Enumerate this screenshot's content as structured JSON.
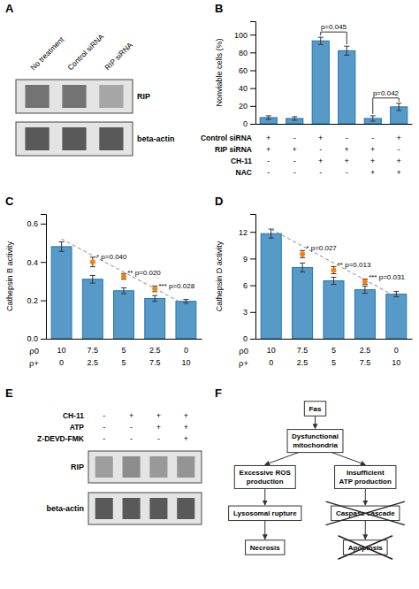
{
  "chart_data": [
    {
      "type": "gel",
      "title": "A",
      "categories": [
        "No treatment",
        "Control siRNA",
        "RIP siRNA"
      ],
      "series": [
        {
          "name": "RIP",
          "values": [
            0.45,
            0.45,
            0.65
          ]
        },
        {
          "name": "beta-actin",
          "values": [
            0.35,
            0.35,
            0.35
          ]
        }
      ]
    },
    {
      "type": "bar",
      "title": "B",
      "ylabel": "Nonviable cells (%)",
      "values": [
        7,
        6,
        93,
        82,
        6,
        19
      ],
      "errors": [
        2,
        2,
        4,
        5,
        3,
        4
      ],
      "ylim": [
        0,
        115
      ],
      "yticks": [
        0,
        20,
        40,
        60,
        80,
        100
      ],
      "tick_labels": "y",
      "annotations": [
        {
          "text": "p=0.045",
          "x": [
            2,
            3
          ]
        },
        {
          "text": "p=0.042",
          "x": [
            4,
            5
          ]
        }
      ],
      "table": {
        "rows": [
          "Control siRNA",
          "RIP siRNA",
          "CH-11",
          "NAC"
        ],
        "cells": [
          [
            "+",
            "-",
            "+",
            "-",
            "-",
            "+"
          ],
          [
            "+",
            "+",
            "-",
            "+",
            "+",
            "-"
          ],
          [
            "-",
            "-",
            "+",
            "+",
            "+",
            "+"
          ],
          [
            "-",
            "-",
            "-",
            "-",
            "+",
            "+"
          ]
        ]
      }
    },
    {
      "type": "bar",
      "title": "C",
      "ylabel": "Cathepsin B activity",
      "values": [
        0.48,
        0.31,
        0.25,
        0.21,
        0.195
      ],
      "errors": [
        0.025,
        0.02,
        0.015,
        0.015,
        0.01
      ],
      "dots": {
        "x": [
          1,
          2,
          3
        ],
        "values": [
          0.4,
          0.325,
          0.26
        ],
        "errors": [
          0.025,
          0.015,
          0.015
        ]
      },
      "line": {
        "x": [
          0,
          4
        ],
        "values": [
          0.52,
          0.175
        ]
      },
      "ylim": [
        0,
        0.65
      ],
      "yticks": [
        {
          "value": 0,
          "label": "0.0"
        },
        0.2,
        0.4,
        0.6
      ],
      "tick_labels": "y",
      "annotations": [
        {
          "text": "* p=0.040",
          "x": 1.12,
          "y": 0.425
        },
        {
          "text": "** p=0.020",
          "x": 2.12,
          "y": 0.345
        },
        {
          "text": "*** p=0.028",
          "x": 3.12,
          "y": 0.275
        }
      ],
      "category_rows": [
        {
          "name": "ρ0",
          "labels": [
            "10",
            "7.5",
            "5",
            "2.5",
            "0"
          ]
        },
        {
          "name": "ρ+",
          "labels": [
            "0",
            "2.5",
            "5",
            "7.5",
            "10"
          ]
        }
      ]
    },
    {
      "type": "bar",
      "title": "D",
      "ylabel": "Cathepsin D activity",
      "values": [
        11.8,
        8.0,
        6.5,
        5.5,
        5.0
      ],
      "errors": [
        0.5,
        0.5,
        0.4,
        0.4,
        0.3
      ],
      "dots": {
        "x": [
          1,
          2,
          3
        ],
        "values": [
          9.5,
          7.7,
          6.4
        ],
        "errors": [
          0.4,
          0.4,
          0.3
        ]
      },
      "line": {
        "x": [
          0,
          4
        ],
        "values": [
          12.3,
          4.7
        ]
      },
      "ylim": [
        0,
        14
      ],
      "yticks": [
        0,
        3,
        6,
        9,
        12
      ],
      "tick_labels": "y",
      "annotations": [
        {
          "text": "* p=0.027",
          "x": 1.12,
          "y": 10.2
        },
        {
          "text": "** p=0.013",
          "x": 2.12,
          "y": 8.3
        },
        {
          "text": "*** p=0.031",
          "x": 3.12,
          "y": 6.9
        }
      ],
      "category_rows": [
        {
          "name": "ρ0",
          "labels": [
            "10",
            "7.5",
            "5",
            "2.5",
            "0"
          ]
        },
        {
          "name": "ρ+",
          "labels": [
            "0",
            "2.5",
            "5",
            "7.5",
            "10"
          ]
        }
      ]
    },
    {
      "type": "gel",
      "title": "E",
      "table": {
        "rows": [
          "CH-11",
          "ATP",
          "Z-DEVD-FMK"
        ],
        "cells": [
          [
            "-",
            "+",
            "+",
            "+"
          ],
          [
            "-",
            "-",
            "+",
            "+"
          ],
          [
            "-",
            "-",
            "-",
            "+"
          ]
        ]
      },
      "series": [
        {
          "name": "RIP",
          "values": [
            0.62,
            0.55,
            0.6,
            0.58
          ]
        },
        {
          "name": "beta-actin",
          "values": [
            0.35,
            0.35,
            0.35,
            0.35
          ]
        }
      ]
    },
    {
      "type": "diagram",
      "title": "F",
      "nodes": [
        "Fas",
        "Dysfunctional\nmitochondria",
        "Excessive ROS\nproduction",
        "Insufficient\nATP production",
        "Lysosomal rupture",
        "Caspase cascade",
        "Necrosis",
        "Apoptosis"
      ],
      "edges": [
        [
          0,
          1
        ],
        [
          1,
          2
        ],
        [
          1,
          3
        ],
        [
          2,
          4
        ],
        [
          3,
          5
        ],
        [
          4,
          6
        ],
        [
          5,
          7
        ]
      ],
      "blocked": [
        5,
        7
      ]
    }
  ]
}
